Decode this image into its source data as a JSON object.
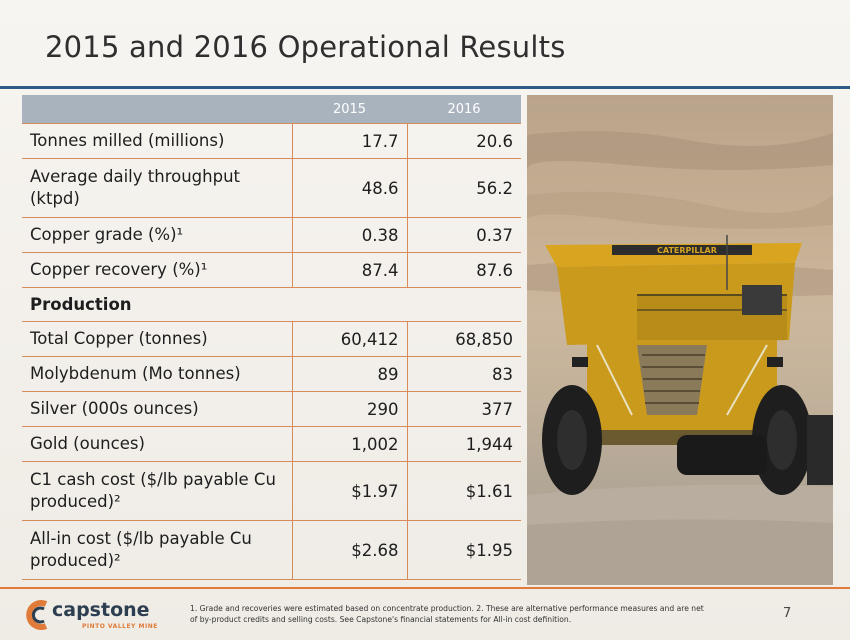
{
  "title": "2015 and 2016 Operational Results",
  "table": {
    "headers": [
      "2015",
      "2016"
    ],
    "rows": [
      {
        "label": "Tonnes milled (millions)",
        "v2015": "17.7",
        "v2016": "20.6"
      },
      {
        "label": "Average daily throughput (ktpd)",
        "v2015": "48.6",
        "v2016": "56.2"
      },
      {
        "label": "Copper grade (%)¹",
        "v2015": "0.38",
        "v2016": "0.37"
      },
      {
        "label": "Copper recovery (%)¹",
        "v2015": "87.4",
        "v2016": "87.6"
      }
    ],
    "section_label": "Production",
    "production_rows": [
      {
        "label": "Total Copper (tonnes)",
        "v2015": "60,412",
        "v2016": "68,850"
      },
      {
        "label": "Molybdenum (Mo tonnes)",
        "v2015": "89",
        "v2016": "83"
      },
      {
        "label": "Silver (000s ounces)",
        "v2015": "290",
        "v2016": "377"
      },
      {
        "label": "Gold (ounces)",
        "v2015": "1,002",
        "v2016": "1,944"
      },
      {
        "label": "C1 cash cost ($/lb payable Cu produced)²",
        "v2015": "$1.97",
        "v2016": "$1.61"
      },
      {
        "label": "All-in cost ($/lb payable Cu produced)²",
        "v2015": "$2.68",
        "v2016": "$1.95"
      }
    ]
  },
  "photo": {
    "truck_brand": "CATERPILLAR"
  },
  "logo": {
    "name": "capstone",
    "subtitle": "PINTO VALLEY MINE"
  },
  "footnote": "1. Grade and recoveries were estimated based on concentrate production. 2. These are alternative performance measures and are net of by-product credits and selling costs. See Capstone's financial statements for All-in cost definition.",
  "page_number": "7",
  "colors": {
    "accent_blue": "#2d5b87",
    "accent_orange": "#e07b39",
    "header_gray": "#a9b3bd",
    "grid_orange": "#d98a5a"
  }
}
